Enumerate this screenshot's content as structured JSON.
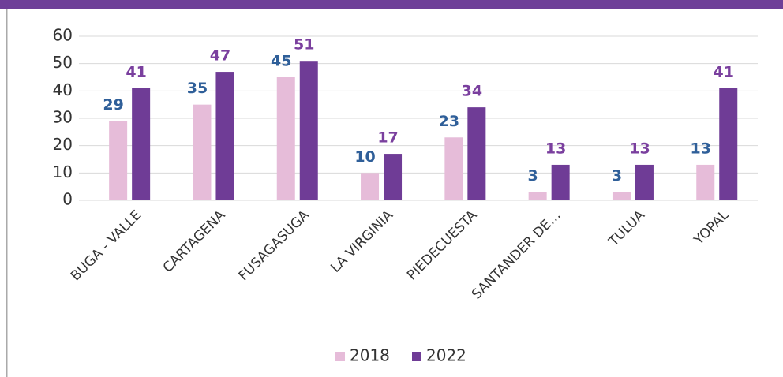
{
  "chart_data": {
    "type": "bar",
    "categories": [
      "BUGA - VALLE",
      "CARTAGENA",
      "FUSAGASUGA",
      "LA VIRGINIA",
      "PIEDECUESTA",
      "SANTANDER DE…",
      "TULUA",
      "YOPAL"
    ],
    "series": [
      {
        "name": "2018",
        "color": "#e6bcd9",
        "label_color": "#2f5f99",
        "values": [
          29,
          35,
          45,
          10,
          23,
          3,
          3,
          13
        ]
      },
      {
        "name": "2022",
        "color": "#6f3c96",
        "label_color": "#7a3f9e",
        "values": [
          41,
          47,
          51,
          17,
          34,
          13,
          13,
          41
        ]
      }
    ],
    "ylim": [
      0,
      60
    ],
    "yticks": [
      0,
      10,
      20,
      30,
      40,
      50,
      60
    ],
    "grid": true,
    "legend": "bottom"
  }
}
